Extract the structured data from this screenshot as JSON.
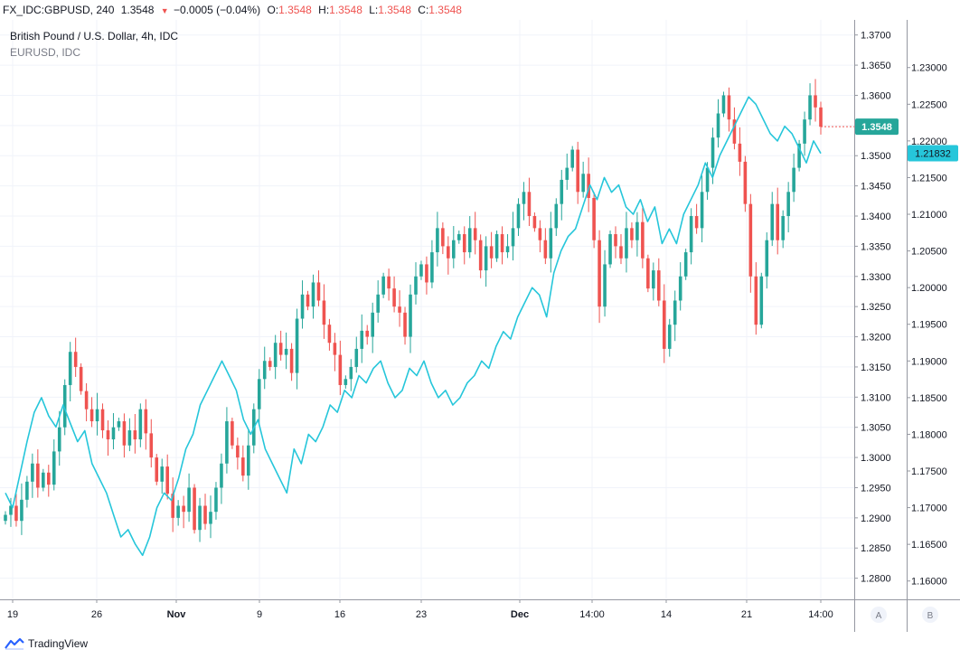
{
  "header": {
    "symbol": "FX_IDC:GBPUSD, 240",
    "last": "1.3548",
    "change": "−0.0005 (−0.04%)",
    "o_label": "O:",
    "o_value": "1.3548",
    "h_label": "H:",
    "h_value": "1.3548",
    "l_label": "L:",
    "l_value": "1.3548",
    "c_label": "C:",
    "c_value": "1.3548"
  },
  "legend": {
    "main": "British Pound / U.S. Dollar, 4h, IDC",
    "compare": "EURUSD, IDC"
  },
  "footer": {
    "brand": "TradingView"
  },
  "scale_buttons": [
    "A",
    "B"
  ],
  "colors": {
    "up": "#26a69a",
    "down": "#ef5350",
    "compare": "#26c6da",
    "grid": "#f0f3fa",
    "axis": "#9598a1"
  },
  "chart_data": {
    "type": "line",
    "title": "British Pound / U.S. Dollar, 4h, IDC",
    "x_tick_labels": [
      "19",
      "26",
      "Nov",
      "9",
      "16",
      "23",
      "Dec",
      "14:00",
      "14",
      "21",
      "14:00"
    ],
    "y_left_range": [
      1.2765,
      1.3725
    ],
    "y_left_ticks": [
      "1.3700",
      "1.3650",
      "1.3600",
      "1.3550",
      "1.3500",
      "1.3450",
      "1.3400",
      "1.3350",
      "1.3300",
      "1.3250",
      "1.3200",
      "1.3150",
      "1.3100",
      "1.3050",
      "1.3000",
      "1.2950",
      "1.2900",
      "1.2850",
      "1.2800"
    ],
    "y_right_range": [
      1.1575,
      1.2365
    ],
    "y_right_ticks": [
      "1.23000",
      "1.22500",
      "1.22000",
      "1.21500",
      "1.21000",
      "1.20500",
      "1.20000",
      "1.19500",
      "1.19000",
      "1.18500",
      "1.18000",
      "1.17500",
      "1.17000",
      "1.16500",
      "1.16000"
    ],
    "last_price_label": "1.3548",
    "compare_last_label": "1.21832",
    "series": [
      {
        "name": "GBPUSD (approx. close path)",
        "style": "candlestick",
        "values": [
          1.2905,
          1.292,
          1.2895,
          1.293,
          1.296,
          1.299,
          1.295,
          1.2975,
          1.2955,
          1.301,
          1.305,
          1.312,
          1.3175,
          1.315,
          1.311,
          1.308,
          1.306,
          1.308,
          1.3045,
          1.303,
          1.305,
          1.306,
          1.302,
          1.3045,
          1.303,
          1.308,
          1.304,
          1.3,
          1.296,
          1.2985,
          1.294,
          1.29,
          1.292,
          1.291,
          1.295,
          1.288,
          1.292,
          1.289,
          1.291,
          1.295,
          1.299,
          1.306,
          1.302,
          1.3,
          1.297,
          1.302,
          1.308,
          1.313,
          1.316,
          1.315,
          1.319,
          1.317,
          1.318,
          1.314,
          1.323,
          1.327,
          1.325,
          1.329,
          1.326,
          1.322,
          1.319,
          1.317,
          1.312,
          1.313,
          1.315,
          1.318,
          1.321,
          1.32,
          1.324,
          1.327,
          1.33,
          1.328,
          1.325,
          1.324,
          1.32,
          1.327,
          1.33,
          1.332,
          1.329,
          1.334,
          1.338,
          1.335,
          1.333,
          1.336,
          1.337,
          1.334,
          1.338,
          1.336,
          1.331,
          1.335,
          1.333,
          1.337,
          1.334,
          1.335,
          1.338,
          1.342,
          1.344,
          1.34,
          1.338,
          1.336,
          1.333,
          1.338,
          1.342,
          1.346,
          1.348,
          1.351,
          1.344,
          1.347,
          1.343,
          1.336,
          1.325,
          1.332,
          1.337,
          1.335,
          1.333,
          1.338,
          1.336,
          1.339,
          1.333,
          1.328,
          1.331,
          1.326,
          1.318,
          1.322,
          1.326,
          1.33,
          1.334,
          1.34,
          1.338,
          1.344,
          1.348,
          1.353,
          1.357,
          1.36,
          1.356,
          1.352,
          1.349,
          1.342,
          1.33,
          1.322,
          1.33,
          1.336,
          1.342,
          1.336,
          1.34,
          1.344,
          1.348,
          1.352,
          1.356,
          1.36,
          1.358,
          1.3548
        ]
      },
      {
        "name": "EURUSD, IDC",
        "style": "line",
        "values": [
          1.172,
          1.17,
          1.1745,
          1.179,
          1.183,
          1.185,
          1.1825,
          1.181,
          1.184,
          1.1815,
          1.179,
          1.1805,
          1.176,
          1.174,
          1.172,
          1.169,
          1.166,
          1.167,
          1.165,
          1.1635,
          1.166,
          1.17,
          1.172,
          1.171,
          1.174,
          1.178,
          1.18,
          1.184,
          1.186,
          1.188,
          1.19,
          1.188,
          1.186,
          1.182,
          1.18,
          1.182,
          1.178,
          1.176,
          1.174,
          1.172,
          1.178,
          1.176,
          1.18,
          1.179,
          1.181,
          1.184,
          1.183,
          1.186,
          1.185,
          1.188,
          1.187,
          1.189,
          1.19,
          1.187,
          1.185,
          1.186,
          1.189,
          1.188,
          1.19,
          1.187,
          1.185,
          1.186,
          1.184,
          1.185,
          1.187,
          1.188,
          1.19,
          1.189,
          1.192,
          1.194,
          1.193,
          1.196,
          1.198,
          1.2,
          1.199,
          1.196,
          1.202,
          1.205,
          1.207,
          1.208,
          1.211,
          1.214,
          1.212,
          1.215,
          1.213,
          1.214,
          1.211,
          1.21,
          1.212,
          1.209,
          1.211,
          1.206,
          1.208,
          1.206,
          1.21,
          1.212,
          1.214,
          1.217,
          1.215,
          1.218,
          1.22,
          1.222,
          1.224,
          1.226,
          1.225,
          1.223,
          1.221,
          1.22,
          1.222,
          1.221,
          1.219,
          1.217,
          1.22,
          1.2183
        ]
      }
    ]
  }
}
